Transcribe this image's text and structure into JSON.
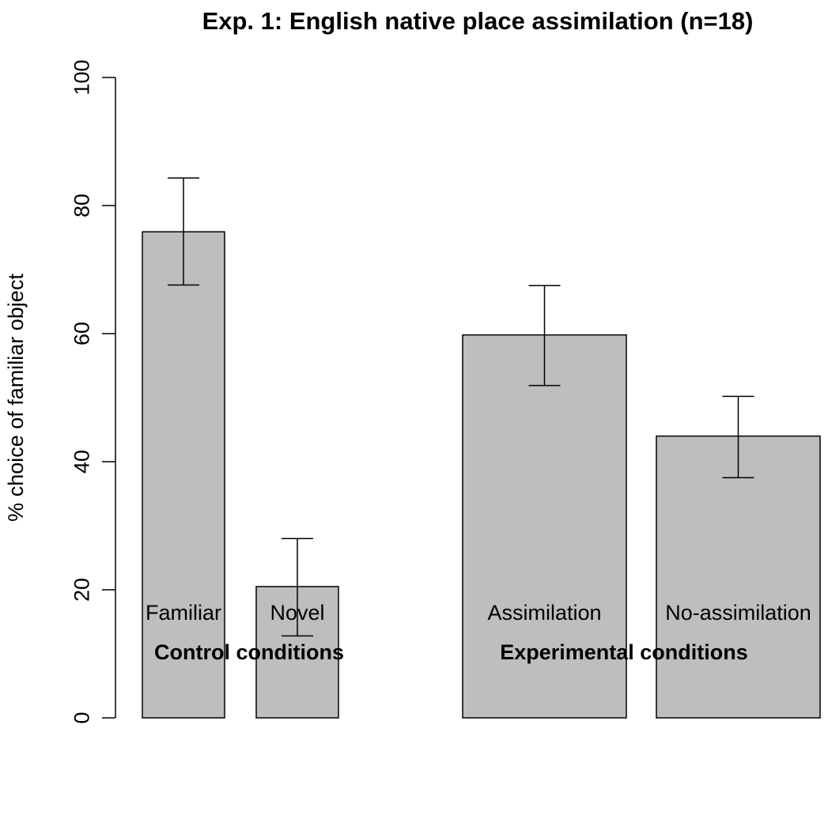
{
  "chart_data": {
    "type": "bar",
    "title": "Exp. 1: English native place assimilation (n=18)",
    "ylabel": "% choice of familiar object",
    "ylim": [
      0,
      100
    ],
    "yticks": [
      0,
      20,
      40,
      60,
      80,
      100
    ],
    "grid": false,
    "bar_color": "#bebebe",
    "categories": [
      "Familiar",
      "Novel",
      "Assimilation",
      "No-assimilation"
    ],
    "values": [
      75.9,
      20.5,
      59.8,
      44.0
    ],
    "error_bars": [
      {
        "lower": 67.6,
        "upper": 84.3
      },
      {
        "lower": 12.8,
        "upper": 28.0
      },
      {
        "lower": 51.9,
        "upper": 67.5
      },
      {
        "lower": 37.5,
        "upper": 50.2
      }
    ],
    "groups": [
      {
        "label": "Control conditions",
        "categories": [
          0,
          1
        ]
      },
      {
        "label": "Experimental conditions",
        "categories": [
          2,
          3
        ]
      }
    ]
  }
}
